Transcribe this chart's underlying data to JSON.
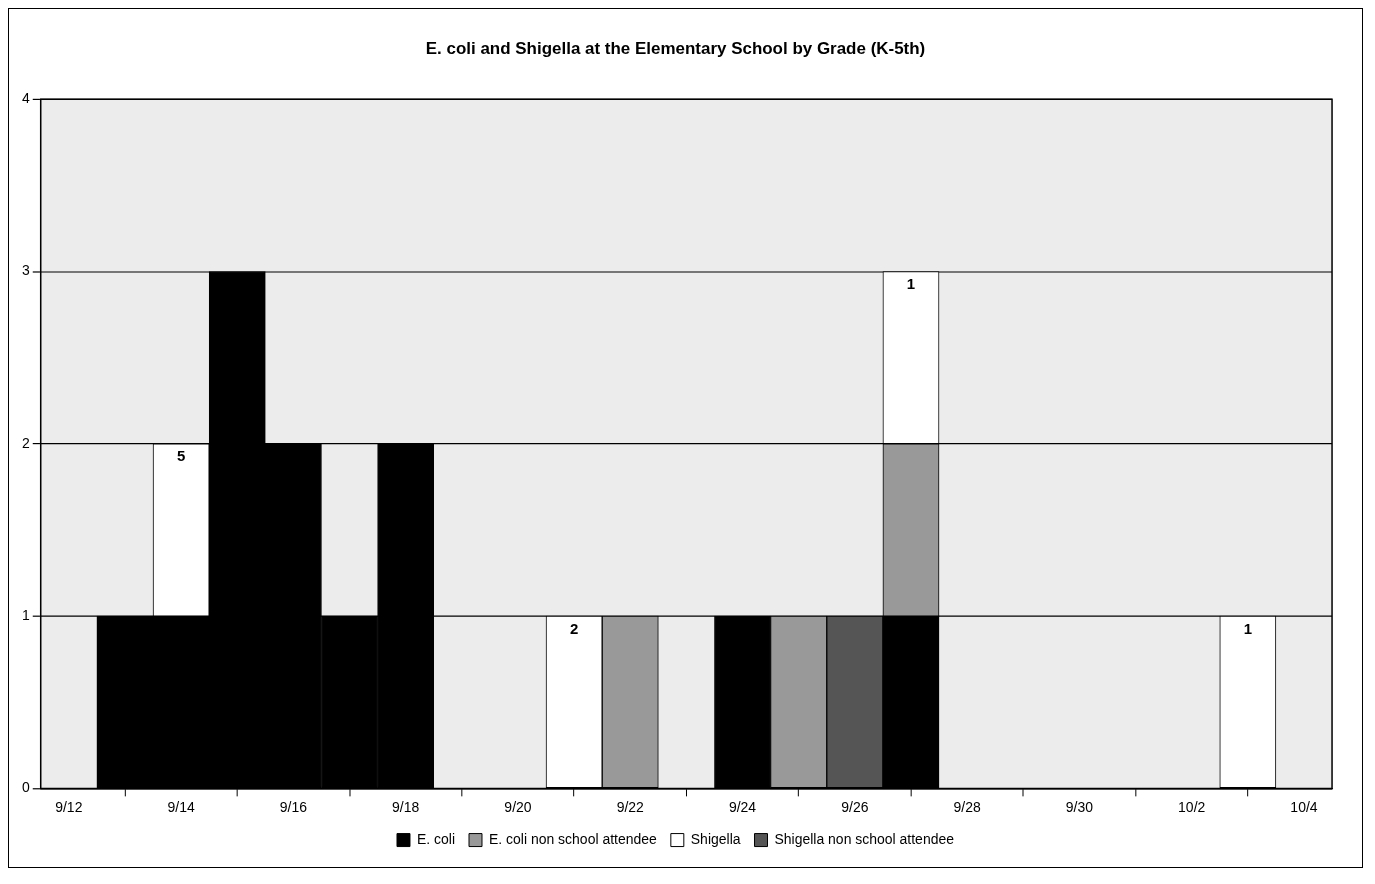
{
  "chart_data": {
    "type": "bar",
    "title": "E. coli and Shigella at the Elementary School by Grade (K-5th)",
    "x": [
      "--09-13",
      "--09-14",
      "--09-15",
      "--09-16",
      "--09-17",
      "--09-18",
      "--09-19",
      "--09-20",
      "--09-21",
      "--09-22",
      "--09-23",
      "--09-24",
      "--09-25",
      "--09-26",
      "--09-27",
      "--09-28",
      "--09-29",
      "--09-30",
      "--10-01",
      "--10-02",
      "--10-03"
    ],
    "xlim": [
      "--09-11T12:00",
      "--10-04T12:00"
    ],
    "xticks": [
      {
        "value": "--09-12",
        "label": "9/12"
      },
      {
        "value": "--09-14",
        "label": "9/14"
      },
      {
        "value": "--09-16",
        "label": "9/16"
      },
      {
        "value": "--09-18",
        "label": "9/18"
      },
      {
        "value": "--09-20",
        "label": "9/20"
      },
      {
        "value": "--09-22",
        "label": "9/22"
      },
      {
        "value": "--09-24",
        "label": "9/24"
      },
      {
        "value": "--09-26",
        "label": "9/26"
      },
      {
        "value": "--09-28",
        "label": "9/28"
      },
      {
        "value": "--09-30",
        "label": "9/30"
      },
      {
        "value": "--10-02",
        "label": "10/2"
      },
      {
        "value": "--10-04",
        "label": "10/4"
      }
    ],
    "stacked": true,
    "ylim": [
      0,
      4
    ],
    "yticks": [
      0,
      1,
      2,
      3,
      4
    ],
    "grid": "y",
    "legend": "bottom",
    "series": [
      {
        "name": "E. coli",
        "color": "#000000",
        "values": [
          1,
          1,
          3,
          2,
          1,
          2,
          null,
          null,
          null,
          null,
          null,
          1,
          null,
          null,
          1,
          null,
          null,
          null,
          null,
          null,
          null
        ]
      },
      {
        "name": "E. coli non school attendee",
        "color": "#999999",
        "values": [
          null,
          null,
          null,
          null,
          null,
          null,
          null,
          null,
          null,
          1,
          null,
          null,
          1,
          null,
          1,
          null,
          null,
          null,
          null,
          null,
          null
        ]
      },
      {
        "name": "Shigella",
        "color": "#ffffff",
        "values": [
          null,
          1,
          null,
          null,
          null,
          null,
          null,
          null,
          1,
          null,
          null,
          null,
          null,
          null,
          1,
          null,
          null,
          null,
          null,
          null,
          1
        ]
      },
      {
        "name": "Shigella non school attendee",
        "color": "#555555",
        "values": [
          null,
          null,
          null,
          null,
          null,
          null,
          null,
          null,
          null,
          null,
          null,
          null,
          null,
          1,
          null,
          null,
          null,
          null,
          null,
          null,
          null
        ]
      }
    ],
    "annotations": [
      {
        "text": "5",
        "x": "--09-14",
        "y": 2
      },
      {
        "text": "2",
        "x": "--09-21",
        "y": 1
      },
      {
        "text": "1",
        "x": "--09-27",
        "y": 3
      },
      {
        "text": "1",
        "x": "--10-03",
        "y": 1
      }
    ]
  }
}
